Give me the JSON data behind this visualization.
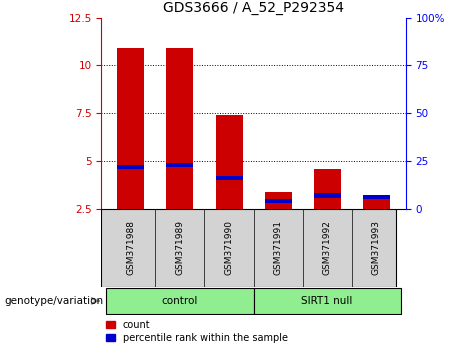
{
  "title": "GDS3666 / A_52_P292354",
  "samples": [
    "GSM371988",
    "GSM371989",
    "GSM371990",
    "GSM371991",
    "GSM371992",
    "GSM371993"
  ],
  "red_values": [
    10.9,
    10.9,
    7.4,
    3.4,
    4.6,
    3.25
  ],
  "blue_values": [
    4.7,
    4.8,
    4.1,
    2.9,
    3.2,
    3.1
  ],
  "red_color": "#cc0000",
  "blue_color": "#0000cc",
  "left_yticks": [
    2.5,
    5.0,
    7.5,
    10.0,
    12.5
  ],
  "right_yticks": [
    0,
    25,
    50,
    75,
    100
  ],
  "ylim_left": [
    2.5,
    12.5
  ],
  "ylim_right": [
    0,
    100
  ],
  "legend_count": "count",
  "legend_pct": "percentile rank within the sample",
  "genotype_label": "genotype/variation",
  "background_color": "#ffffff",
  "sample_bg_color": "#d3d3d3",
  "group_bg_color": "#90EE90",
  "title_fontsize": 10,
  "tick_fontsize": 7.5,
  "bar_fontsize": 6.5,
  "geno_fontsize": 7.5,
  "legend_fontsize": 7
}
